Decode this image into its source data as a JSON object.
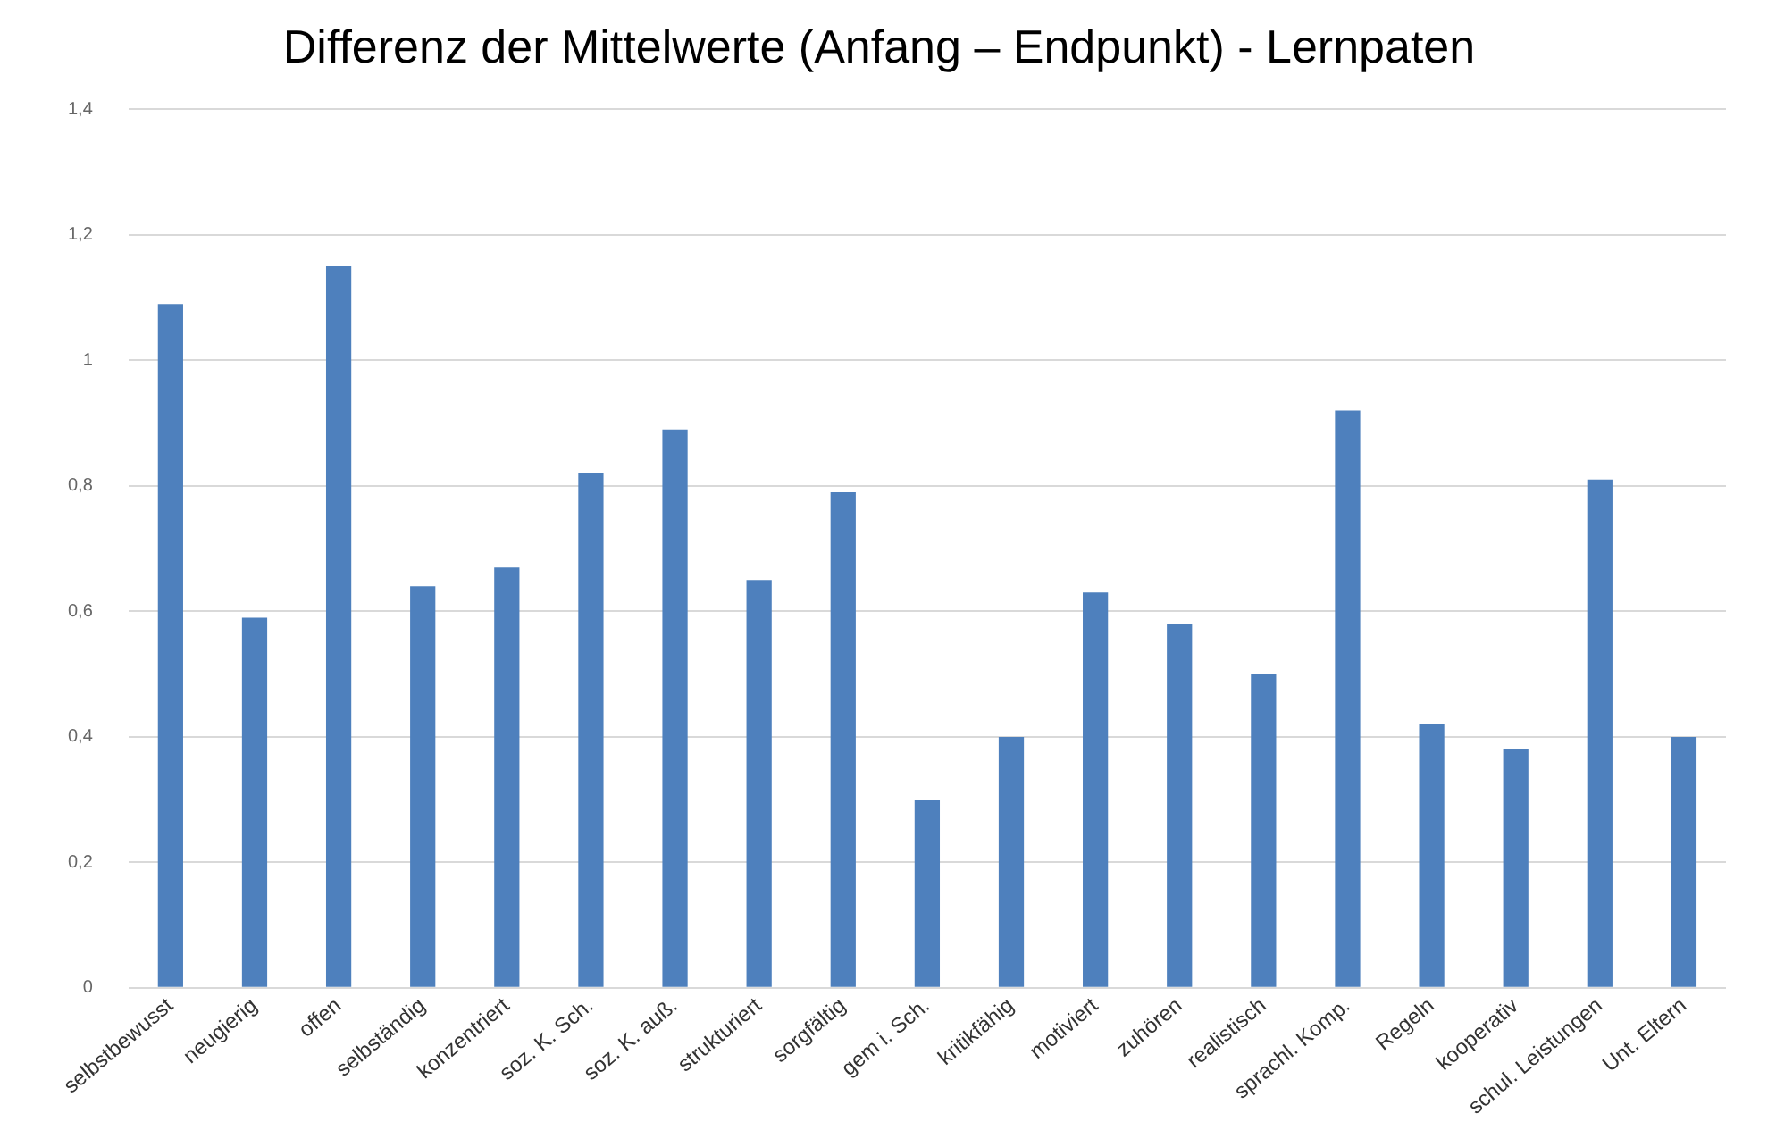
{
  "chart_data": {
    "type": "bar",
    "title": "Differenz der Mittelwerte (Anfang – Endpunkt) - Lernpaten",
    "categories": [
      "selbstbewusst",
      "neugierig",
      "offen",
      "selbständig",
      "konzentriert",
      "soz. K. Sch.",
      "soz. K. auß.",
      "strukturiert",
      "sorgfältig",
      "gem i. Sch.",
      "kritikfähig",
      "motiviert",
      "zuhören",
      "realistisch",
      "sprachl. Komp.",
      "Regeln",
      "kooperativ",
      "schul. Leistungen",
      "Unt. Eltern"
    ],
    "values": [
      1.09,
      0.59,
      1.15,
      0.64,
      0.67,
      0.82,
      0.89,
      0.65,
      0.79,
      0.3,
      0.4,
      0.63,
      0.58,
      0.5,
      0.92,
      0.42,
      0.38,
      0.81,
      0.4
    ],
    "color": "#4e80bd",
    "ylim": [
      0,
      1.4
    ],
    "yticks": [
      {
        "value": 0,
        "label": "0"
      },
      {
        "value": 0.2,
        "label": "0,2"
      },
      {
        "value": 0.4,
        "label": "0,4"
      },
      {
        "value": 0.6,
        "label": "0,6"
      },
      {
        "value": 0.8,
        "label": "0,8"
      },
      {
        "value": 1,
        "label": "1"
      },
      {
        "value": 1.2,
        "label": "1,2"
      },
      {
        "value": 1.4,
        "label": "1,4"
      }
    ],
    "grid": "y",
    "legend": false
  }
}
